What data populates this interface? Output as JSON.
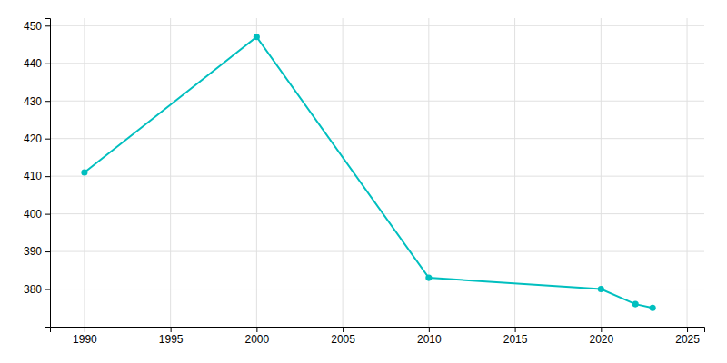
{
  "chart_data": {
    "type": "line",
    "x": [
      1990,
      2000,
      2010,
      2020,
      2022,
      2023
    ],
    "values": [
      411,
      447,
      383,
      380,
      376,
      375
    ],
    "color": "#00BFBF",
    "marker": "circle",
    "xlim": [
      1988,
      2026
    ],
    "ylim": [
      370,
      452
    ],
    "xticks": [
      1990,
      1995,
      2000,
      2005,
      2010,
      2015,
      2020,
      2025
    ],
    "yticks": [
      380,
      390,
      400,
      410,
      420,
      430,
      440,
      450
    ],
    "grid": true
  }
}
